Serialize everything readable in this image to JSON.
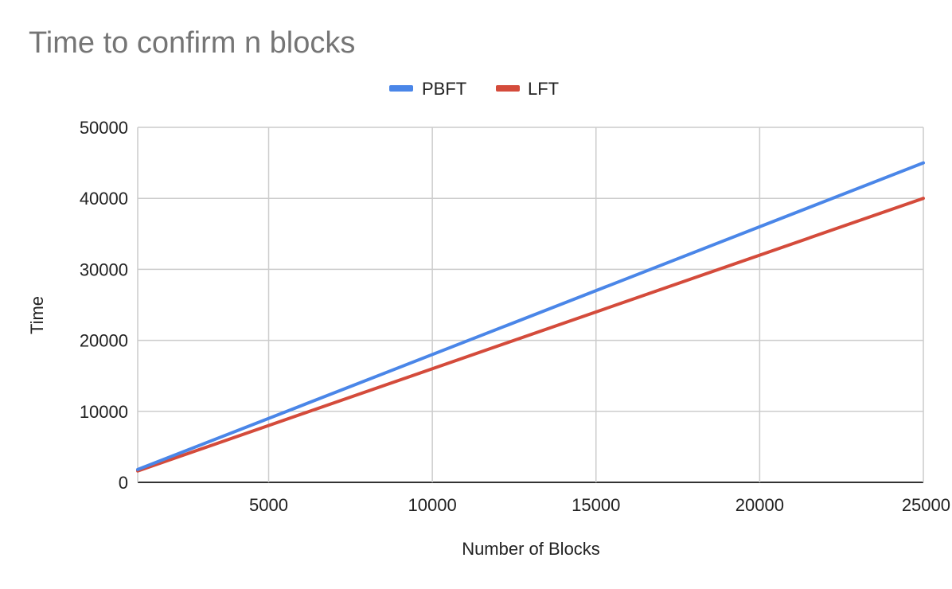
{
  "chart_data": {
    "type": "line",
    "title": "Time to confirm n blocks",
    "xlabel": "Number of Blocks",
    "ylabel": "Time",
    "xlim": [
      1000,
      25000
    ],
    "ylim": [
      0,
      50000
    ],
    "x_ticks": [
      5000,
      10000,
      15000,
      20000,
      25000
    ],
    "y_ticks": [
      0,
      10000,
      20000,
      30000,
      40000,
      50000
    ],
    "grid": true,
    "legend_position": "top-center",
    "series": [
      {
        "name": "PBFT",
        "color": "#4a86e8",
        "x": [
          1000,
          25000
        ],
        "y": [
          1800,
          45000
        ]
      },
      {
        "name": "LFT",
        "color": "#d44b3b",
        "x": [
          1000,
          25000
        ],
        "y": [
          1600,
          40000
        ]
      }
    ]
  }
}
